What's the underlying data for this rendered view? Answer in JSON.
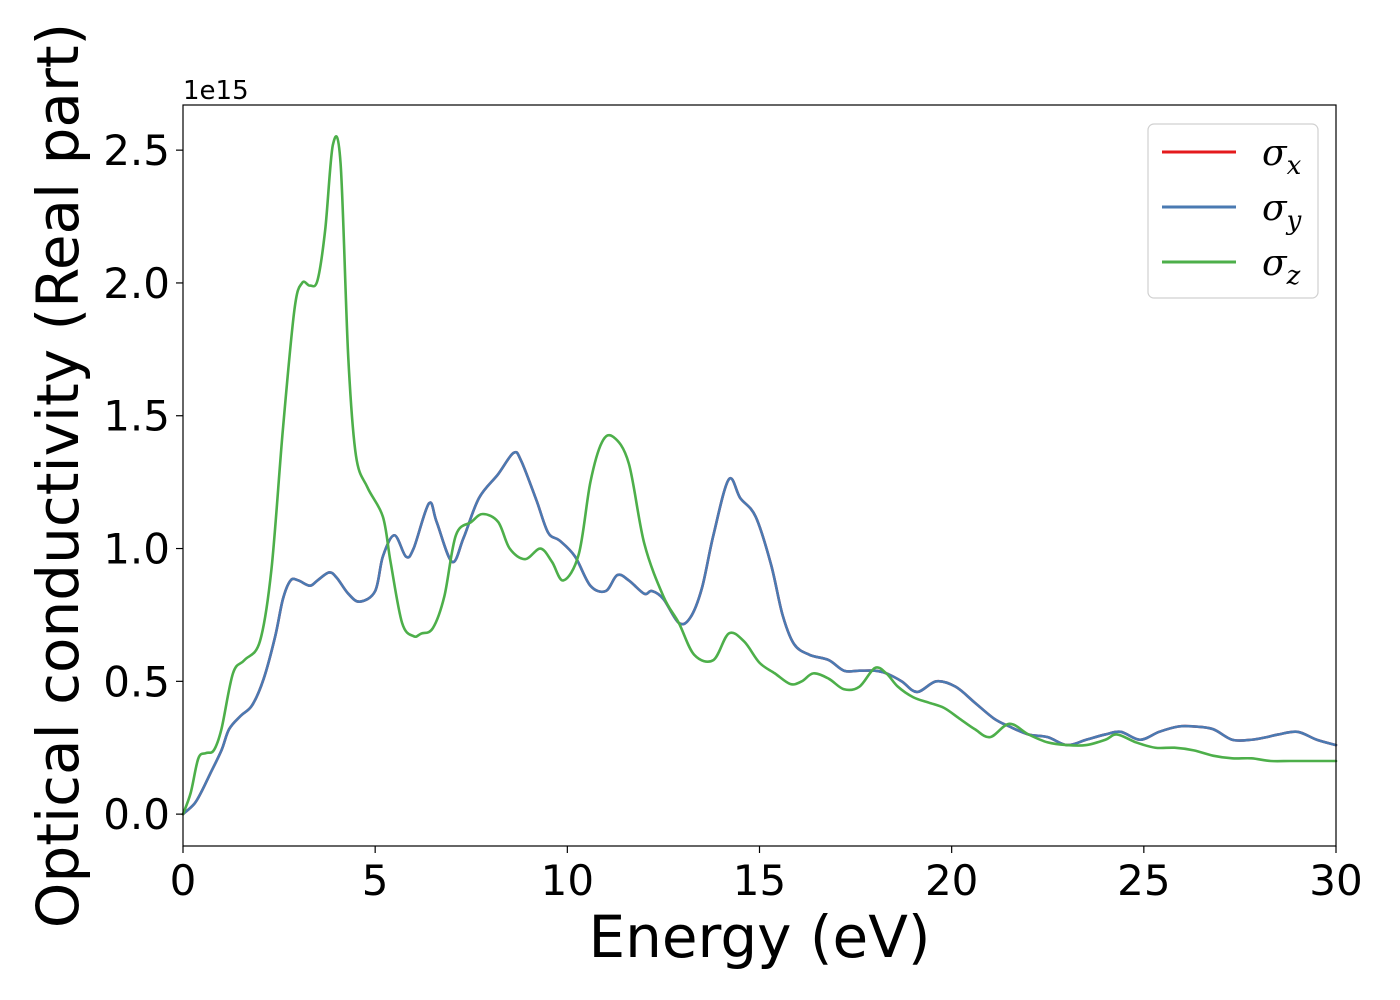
{
  "chart_data": {
    "type": "line",
    "title": "",
    "xlabel": "Energy (eV)",
    "ylabel": "Optical conductivity (Real part)",
    "y_offset_text": "1e15",
    "xlim": [
      0,
      30
    ],
    "ylim": [
      -0.12,
      2.67
    ],
    "x_ticks": [
      0,
      5,
      10,
      15,
      20,
      25,
      30
    ],
    "x_tick_labels": [
      "0",
      "5",
      "10",
      "15",
      "20",
      "25",
      "30"
    ],
    "y_ticks": [
      0.0,
      0.5,
      1.0,
      1.5,
      2.0,
      2.5
    ],
    "y_tick_labels": [
      "0.0",
      "0.5",
      "1.0",
      "1.5",
      "2.0",
      "2.5"
    ],
    "grid": false,
    "legend_position": "top-right",
    "series": [
      {
        "name": "σx",
        "legend_base": "σ",
        "legend_sub": "x",
        "color": "#e41a1c",
        "x": [
          0.0,
          0.3,
          0.5,
          0.7,
          1.0,
          1.2,
          1.5,
          1.8,
          2.1,
          2.4,
          2.6,
          2.8,
          3.0,
          3.3,
          3.5,
          3.8,
          4.0,
          4.3,
          4.6,
          5.0,
          5.2,
          5.5,
          5.8,
          6.0,
          6.4,
          6.6,
          7.0,
          7.3,
          7.7,
          8.2,
          8.6,
          8.8,
          9.2,
          9.5,
          9.8,
          10.2,
          10.6,
          11.0,
          11.3,
          11.6,
          12.0,
          12.2,
          12.5,
          12.9,
          13.2,
          13.5,
          13.8,
          14.2,
          14.5,
          14.9,
          15.3,
          15.6,
          15.9,
          16.3,
          16.8,
          17.2,
          17.6,
          18.0,
          18.3,
          18.7,
          19.1,
          19.6,
          20.1,
          20.6,
          21.1,
          21.5,
          22.0,
          22.5,
          23.0,
          23.5,
          24.0,
          24.4,
          24.9,
          25.4,
          25.9,
          26.3,
          26.8,
          27.3,
          27.8,
          28.2,
          28.5,
          29.0,
          29.5,
          30.0
        ],
        "y": [
          0.0,
          0.04,
          0.09,
          0.15,
          0.24,
          0.32,
          0.37,
          0.41,
          0.51,
          0.67,
          0.81,
          0.88,
          0.88,
          0.86,
          0.88,
          0.91,
          0.89,
          0.83,
          0.8,
          0.84,
          0.97,
          1.05,
          0.97,
          1.0,
          1.17,
          1.1,
          0.95,
          1.04,
          1.19,
          1.28,
          1.36,
          1.33,
          1.18,
          1.06,
          1.03,
          0.97,
          0.86,
          0.84,
          0.9,
          0.88,
          0.83,
          0.84,
          0.81,
          0.72,
          0.74,
          0.85,
          1.05,
          1.26,
          1.19,
          1.12,
          0.94,
          0.75,
          0.64,
          0.6,
          0.58,
          0.54,
          0.54,
          0.54,
          0.53,
          0.5,
          0.46,
          0.5,
          0.48,
          0.42,
          0.36,
          0.33,
          0.3,
          0.29,
          0.26,
          0.28,
          0.3,
          0.31,
          0.28,
          0.31,
          0.33,
          0.33,
          0.32,
          0.28,
          0.28,
          0.29,
          0.3,
          0.31,
          0.28,
          0.26
        ]
      },
      {
        "name": "σy",
        "legend_base": "σ",
        "legend_sub": "y",
        "color": "#4a7ab2",
        "x": [
          0.0,
          0.3,
          0.5,
          0.7,
          1.0,
          1.2,
          1.5,
          1.8,
          2.1,
          2.4,
          2.6,
          2.8,
          3.0,
          3.3,
          3.5,
          3.8,
          4.0,
          4.3,
          4.6,
          5.0,
          5.2,
          5.5,
          5.8,
          6.0,
          6.4,
          6.6,
          7.0,
          7.3,
          7.7,
          8.2,
          8.6,
          8.8,
          9.2,
          9.5,
          9.8,
          10.2,
          10.6,
          11.0,
          11.3,
          11.6,
          12.0,
          12.2,
          12.5,
          12.9,
          13.2,
          13.5,
          13.8,
          14.2,
          14.5,
          14.9,
          15.3,
          15.6,
          15.9,
          16.3,
          16.8,
          17.2,
          17.6,
          18.0,
          18.3,
          18.7,
          19.1,
          19.6,
          20.1,
          20.6,
          21.1,
          21.5,
          22.0,
          22.5,
          23.0,
          23.5,
          24.0,
          24.4,
          24.9,
          25.4,
          25.9,
          26.3,
          26.8,
          27.3,
          27.8,
          28.2,
          28.5,
          29.0,
          29.5,
          30.0
        ],
        "y": [
          0.0,
          0.04,
          0.09,
          0.15,
          0.24,
          0.32,
          0.37,
          0.41,
          0.51,
          0.67,
          0.81,
          0.88,
          0.88,
          0.86,
          0.88,
          0.91,
          0.89,
          0.83,
          0.8,
          0.84,
          0.97,
          1.05,
          0.97,
          1.0,
          1.17,
          1.1,
          0.95,
          1.04,
          1.19,
          1.28,
          1.36,
          1.33,
          1.18,
          1.06,
          1.03,
          0.97,
          0.86,
          0.84,
          0.9,
          0.88,
          0.83,
          0.84,
          0.81,
          0.72,
          0.74,
          0.85,
          1.05,
          1.26,
          1.19,
          1.12,
          0.94,
          0.75,
          0.64,
          0.6,
          0.58,
          0.54,
          0.54,
          0.54,
          0.53,
          0.5,
          0.46,
          0.5,
          0.48,
          0.42,
          0.36,
          0.33,
          0.3,
          0.29,
          0.26,
          0.28,
          0.3,
          0.31,
          0.28,
          0.31,
          0.33,
          0.33,
          0.32,
          0.28,
          0.28,
          0.29,
          0.3,
          0.31,
          0.28,
          0.26
        ]
      },
      {
        "name": "σz",
        "legend_base": "σ",
        "legend_sub": "z",
        "color": "#4daf4a",
        "x": [
          0.0,
          0.2,
          0.4,
          0.6,
          0.8,
          1.0,
          1.3,
          1.6,
          2.0,
          2.3,
          2.6,
          2.9,
          3.1,
          3.3,
          3.5,
          3.7,
          3.9,
          4.1,
          4.3,
          4.5,
          4.8,
          5.2,
          5.4,
          5.7,
          6.0,
          6.2,
          6.5,
          6.8,
          7.1,
          7.5,
          7.8,
          8.2,
          8.5,
          8.9,
          9.3,
          9.6,
          9.9,
          10.3,
          10.6,
          10.9,
          11.2,
          11.6,
          12.0,
          12.5,
          12.9,
          13.3,
          13.8,
          14.2,
          14.6,
          15.0,
          15.4,
          15.8,
          16.1,
          16.4,
          16.8,
          17.2,
          17.6,
          18.0,
          18.3,
          18.6,
          19.0,
          19.4,
          19.8,
          20.2,
          20.6,
          21.0,
          21.5,
          22.0,
          22.5,
          23.0,
          23.5,
          24.0,
          24.3,
          24.8,
          25.3,
          25.8,
          26.3,
          26.8,
          27.3,
          27.8,
          28.3,
          28.8,
          29.3,
          30.0
        ],
        "y": [
          0.0,
          0.08,
          0.21,
          0.23,
          0.24,
          0.32,
          0.53,
          0.58,
          0.65,
          0.92,
          1.45,
          1.9,
          2.0,
          1.99,
          2.01,
          2.2,
          2.52,
          2.45,
          1.72,
          1.35,
          1.23,
          1.12,
          0.95,
          0.72,
          0.67,
          0.68,
          0.7,
          0.82,
          1.05,
          1.1,
          1.13,
          1.1,
          1.0,
          0.96,
          1.0,
          0.95,
          0.88,
          0.98,
          1.25,
          1.4,
          1.42,
          1.32,
          1.02,
          0.82,
          0.72,
          0.6,
          0.58,
          0.68,
          0.65,
          0.57,
          0.53,
          0.49,
          0.5,
          0.53,
          0.51,
          0.47,
          0.48,
          0.55,
          0.53,
          0.48,
          0.44,
          0.42,
          0.4,
          0.36,
          0.32,
          0.29,
          0.34,
          0.3,
          0.27,
          0.26,
          0.26,
          0.28,
          0.3,
          0.27,
          0.25,
          0.25,
          0.24,
          0.22,
          0.21,
          0.21,
          0.2,
          0.2,
          0.2,
          0.2
        ]
      }
    ]
  }
}
